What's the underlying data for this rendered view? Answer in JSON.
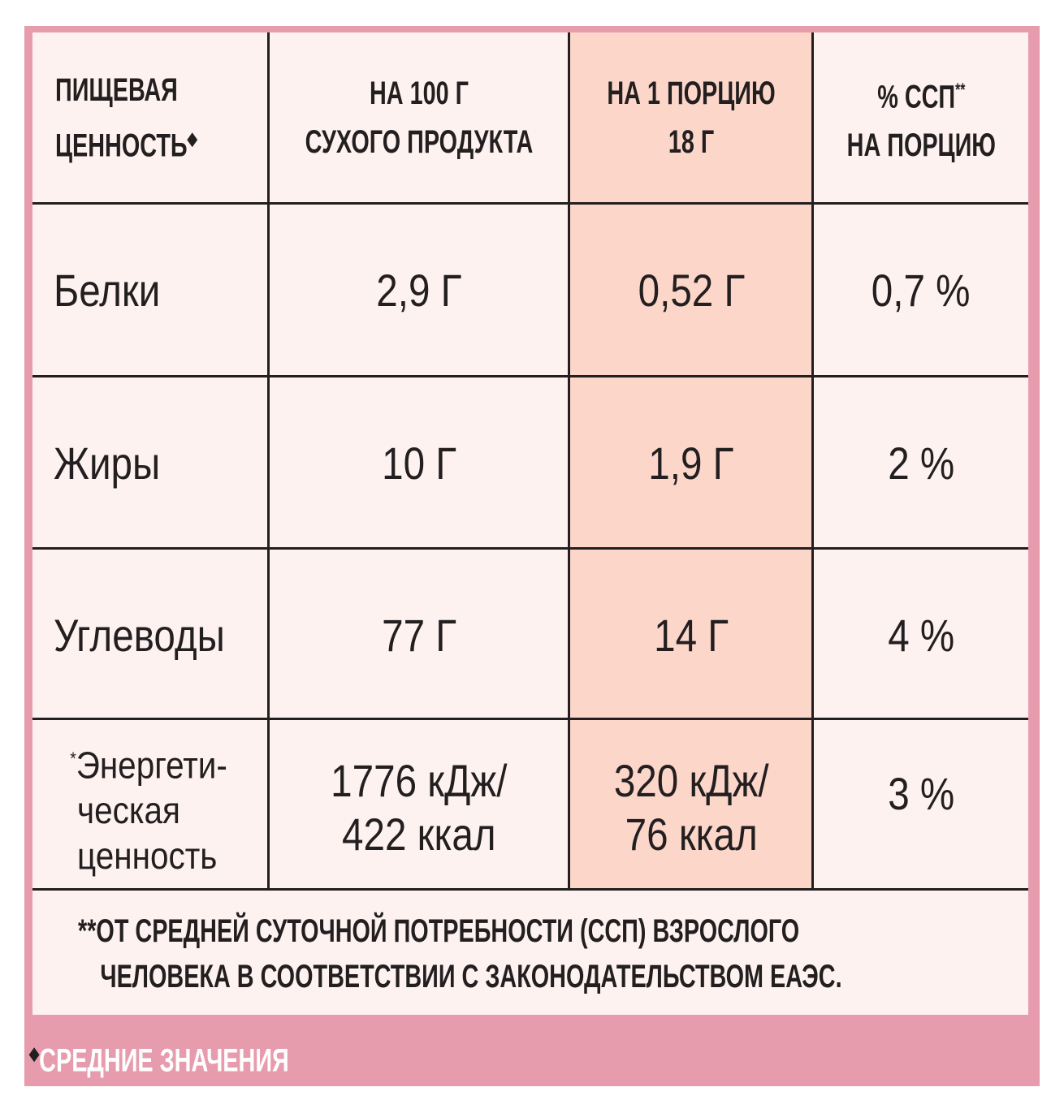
{
  "header": {
    "col1": [
      "ПИЩЕВАЯ",
      "ЦЕННОСТЬ"
    ],
    "col1_mark": "◆",
    "col2": [
      "НА 100 Г",
      "СУХОГО ПРОДУКТА"
    ],
    "col3": [
      "НА 1 ПОРЦИЮ",
      "18 Г"
    ],
    "col4": [
      "% ССП",
      "НА ПОРЦИЮ"
    ],
    "col4_mark": "**"
  },
  "rows": [
    [
      "Белки",
      "2,9 Г",
      "0,52 Г",
      "0,7 %"
    ],
    [
      "Жиры",
      "10 Г",
      "1,9 Г",
      "2 %"
    ],
    [
      "Углеводы",
      "77 Г",
      "14 Г",
      "4 %"
    ]
  ],
  "energy": {
    "mark": "*",
    "label": [
      "Энергети-",
      "ческая",
      "ценность"
    ],
    "per100": [
      "1776 кДж/",
      "422 ккал"
    ],
    "portion": [
      "320 кДж/",
      "76 ккал"
    ],
    "pct": "3 %"
  },
  "footnote": {
    "mark": "**",
    "lines": [
      "ОТ СРЕДНЕЙ СУТОЧНОЙ ПОТРЕБНОСТИ (ССП) ВЗРОСЛОГО",
      "ЧЕЛОВЕКА В СООТВЕТСТВИИ С ЗАКОНОДАТЕЛЬСТВОМ ЕАЭС."
    ]
  },
  "note": {
    "mark": "◆",
    "text": "СРЕДНИЕ ЗНАЧЕНИЯ"
  }
}
